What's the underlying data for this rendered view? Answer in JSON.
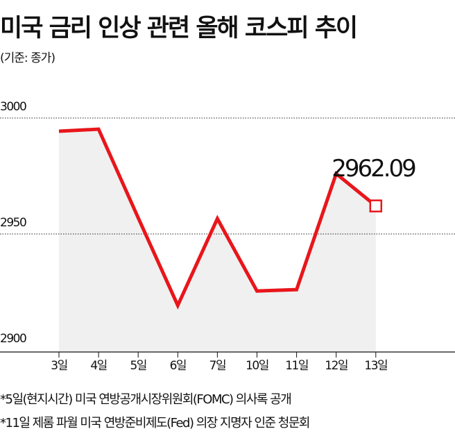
{
  "chart_data": {
    "type": "line",
    "title": "미국 금리 인상 관련 올해 코스피 추이",
    "subtitle": "(기준: 종가)",
    "categories": [
      "3일",
      "4일",
      "5일",
      "6일",
      "7일",
      "10일",
      "11일",
      "12일",
      "13일"
    ],
    "values": [
      2994.3,
      2995.2,
      2957,
      2919.2,
      2956.6,
      2925.4,
      2926,
      2976,
      2962.09
    ],
    "value_labels": [
      null,
      null,
      null,
      null,
      null,
      null,
      null,
      null,
      "2962.09"
    ],
    "color": "#e8161b",
    "area_color": "#f0f0f0",
    "ylim": [
      2900,
      3000
    ],
    "yticks": [
      2900,
      2950,
      3000
    ],
    "grid": true,
    "notes": [
      "*5일(현지시간) 미국 연방공개시장위원회(FOMC) 의사록 공개",
      "*11일 제롬 파월 미국 연방준비제도(Fed) 의장 지명자 인준 청문회"
    ]
  }
}
